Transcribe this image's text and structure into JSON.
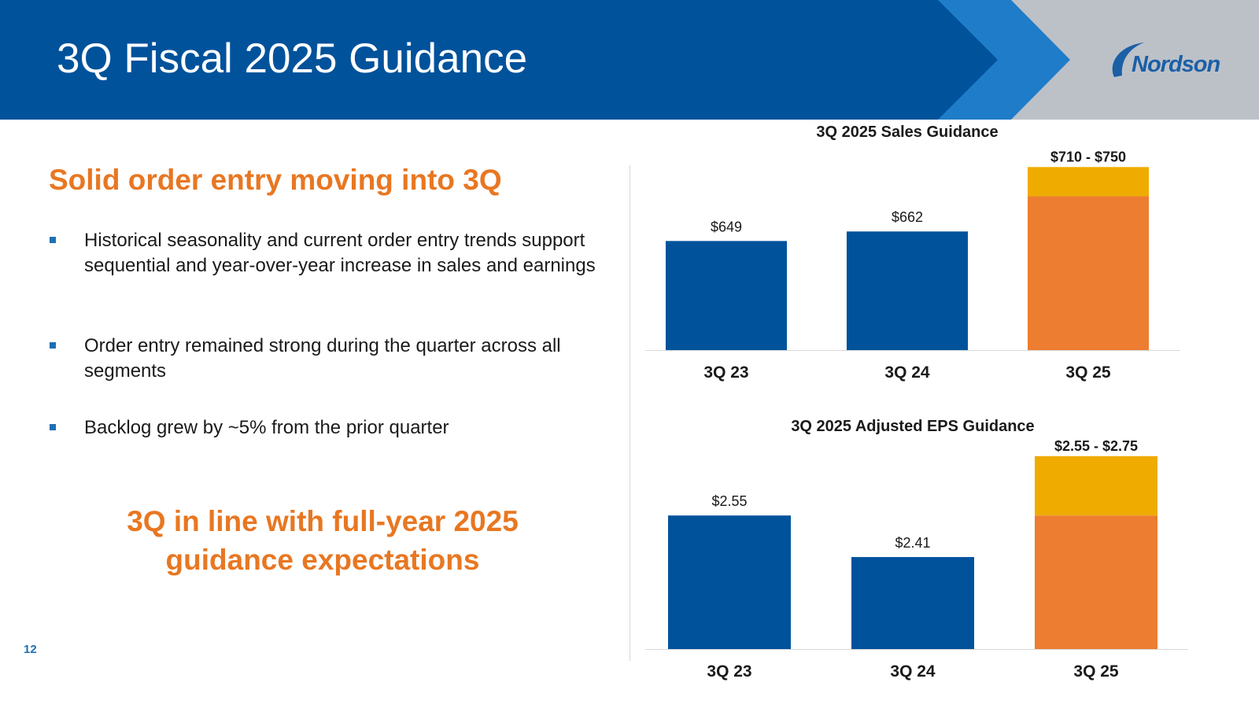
{
  "header": {
    "title": "3Q Fiscal 2025 Guidance",
    "logo_text": "Nordson",
    "colors": {
      "primary": "#00529b",
      "accent": "#1f7cc8",
      "grey": "#bcc1c8"
    }
  },
  "left": {
    "headline": "Solid order entry moving into 3Q",
    "bullets": [
      "Historical seasonality and current order entry trends support sequential and year-over-year increase in sales and earnings",
      "Order entry remained strong during the quarter across all segments",
      "Backlog grew by ~5% from the prior quarter"
    ],
    "conclusion_line1": "3Q in line with full-year 2025",
    "conclusion_line2": "guidance expectations",
    "page_number": "12"
  },
  "chart_data": [
    {
      "type": "bar",
      "title": "3Q 2025 Sales Guidance",
      "categories": [
        "3Q 23",
        "3Q 24",
        "3Q 25"
      ],
      "values": [
        649,
        662,
        710
      ],
      "value_labels": [
        "$649",
        "$662",
        ""
      ],
      "guidance_range": {
        "low": 710,
        "high": 750,
        "label": "$710 - $750"
      },
      "ylim": [
        500,
        760
      ],
      "colors": {
        "actual": "#00529b",
        "guidance_low": "#ed7d31",
        "guidance_range": "#f0ab00"
      }
    },
    {
      "type": "bar",
      "title": "3Q 2025 Adjusted EPS Guidance",
      "categories": [
        "3Q 23",
        "3Q 24",
        "3Q 25"
      ],
      "values": [
        2.55,
        2.41,
        2.55
      ],
      "value_labels": [
        "$2.55",
        "$2.41",
        ""
      ],
      "guidance_range": {
        "low": 2.55,
        "high": 2.75,
        "label": "$2.55 - $2.75"
      },
      "ylim": [
        2.1,
        2.76
      ],
      "colors": {
        "actual": "#00529b",
        "guidance_low": "#ed7d31",
        "guidance_range": "#f0ab00"
      }
    }
  ]
}
